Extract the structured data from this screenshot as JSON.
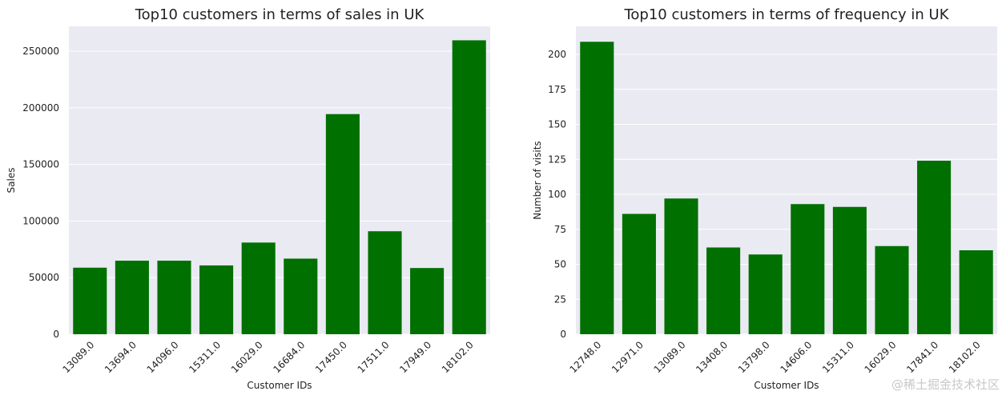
{
  "chart_data": [
    {
      "type": "bar",
      "title": "Top10 customers in terms of sales in UK",
      "xlabel": "Customer IDs",
      "ylabel": "Sales",
      "categories": [
        "13089.0",
        "13694.0",
        "14096.0",
        "15311.0",
        "16029.0",
        "16684.0",
        "17450.0",
        "17511.0",
        "17949.0",
        "18102.0"
      ],
      "values": [
        58800,
        65000,
        65000,
        60800,
        81000,
        66800,
        194500,
        91000,
        58500,
        259700
      ],
      "ylim": [
        0,
        272000
      ],
      "yticks": [
        0,
        50000,
        100000,
        150000,
        200000,
        250000
      ],
      "ytick_labels": [
        "0",
        "50000",
        "100000",
        "150000",
        "200000",
        "250000"
      ],
      "bar_color": "#007000",
      "background_color": "#eaeaf2",
      "grid": true
    },
    {
      "type": "bar",
      "title": "Top10 customers in terms of frequency in UK",
      "xlabel": "Customer IDs",
      "ylabel": "Number of visits",
      "categories": [
        "12748.0",
        "12971.0",
        "13089.0",
        "13408.0",
        "13798.0",
        "14606.0",
        "15311.0",
        "16029.0",
        "17841.0",
        "18102.0"
      ],
      "values": [
        209,
        86,
        97,
        62,
        57,
        93,
        91,
        63,
        124,
        60
      ],
      "ylim": [
        0,
        220
      ],
      "yticks": [
        0,
        25,
        50,
        75,
        100,
        125,
        150,
        175,
        200
      ],
      "ytick_labels": [
        "0",
        "25",
        "50",
        "75",
        "100",
        "125",
        "150",
        "175",
        "200"
      ],
      "bar_color": "#007000",
      "background_color": "#eaeaf2",
      "grid": true
    }
  ],
  "watermark": "@稀土掘金技术社区"
}
